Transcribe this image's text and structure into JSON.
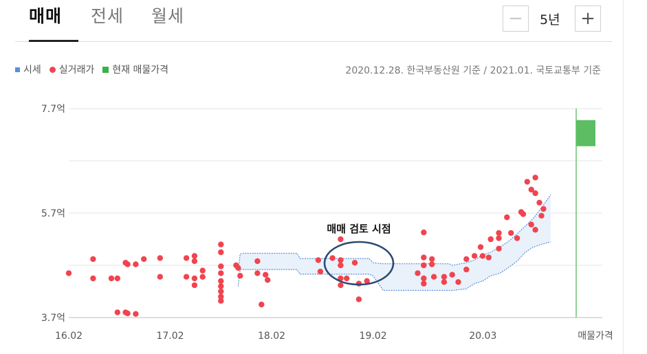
{
  "tabs": [
    {
      "label": "매매",
      "active": true
    },
    {
      "label": "전세",
      "active": false
    },
    {
      "label": "월세",
      "active": false
    }
  ],
  "period": {
    "minus_icon": "minus-icon",
    "value": "5년",
    "plus_icon": "plus-icon"
  },
  "legend": [
    {
      "label": "시세",
      "color": "#5b8fd9",
      "shape": "square"
    },
    {
      "label": "실거래가",
      "color": "#f0444e",
      "shape": "circle"
    },
    {
      "label": "현재 매물가격",
      "color": "#3cb04a",
      "shape": "square"
    }
  ],
  "basis_text": "2020.12.28. 한국부동산원 기준 / 2021.01. 국토교통부 기준",
  "annotation": {
    "text": "매매 검토 시점"
  },
  "chart_data": {
    "type": "scatter",
    "title": "",
    "xlabel": "",
    "ylabel": "",
    "y_unit": "억",
    "ylim": [
      3.7,
      7.7
    ],
    "y_ticks": [
      {
        "value": 3.7,
        "label": "3.7억"
      },
      {
        "value": 5.7,
        "label": "5.7억"
      },
      {
        "value": 7.7,
        "label": "7.7억"
      }
    ],
    "xlim": [
      2016.0,
      2021.26
    ],
    "x_ticks": [
      {
        "value": 2016.0,
        "label": "16.02"
      },
      {
        "value": 2017.0,
        "label": "17.02"
      },
      {
        "value": 2018.0,
        "label": "18.02"
      },
      {
        "value": 2019.0,
        "label": "19.02"
      },
      {
        "value": 2020.083,
        "label": "20.03"
      }
    ],
    "listing_label": "매물가격",
    "grid": true,
    "series": [
      {
        "name": "시세",
        "type": "band",
        "color": "#5b8fd9",
        "x": [
          2017.67,
          2017.69,
          2017.72,
          2018.25,
          2018.28,
          2018.96,
          2019.0,
          2019.1,
          2019.75,
          2019.78,
          2019.92,
          2020.0,
          2020.08,
          2020.16,
          2020.25,
          2020.33,
          2020.42,
          2020.5,
          2020.58,
          2020.66,
          2020.75
        ],
        "upper": [
          4.6,
          4.92,
          4.93,
          4.93,
          4.83,
          4.83,
          4.75,
          4.73,
          4.73,
          4.7,
          4.75,
          4.8,
          4.9,
          4.95,
          5.05,
          5.15,
          5.3,
          5.45,
          5.6,
          5.8,
          6.05
        ],
        "lower": [
          4.3,
          4.62,
          4.62,
          4.62,
          4.53,
          4.53,
          4.5,
          4.22,
          4.22,
          4.22,
          4.25,
          4.35,
          4.4,
          4.5,
          4.55,
          4.65,
          4.78,
          4.95,
          5.05,
          5.1,
          5.15
        ]
      },
      {
        "name": "실거래가",
        "type": "scatter",
        "color": "#f0444e",
        "points": [
          [
            2016.0,
            4.55
          ],
          [
            2016.24,
            4.82
          ],
          [
            2016.24,
            4.45
          ],
          [
            2016.42,
            4.45
          ],
          [
            2016.48,
            4.45
          ],
          [
            2016.48,
            3.8
          ],
          [
            2016.56,
            3.8
          ],
          [
            2016.58,
            3.78
          ],
          [
            2016.56,
            4.75
          ],
          [
            2016.58,
            4.72
          ],
          [
            2016.66,
            3.77
          ],
          [
            2016.66,
            4.72
          ],
          [
            2016.74,
            4.82
          ],
          [
            2016.9,
            4.84
          ],
          [
            2016.9,
            4.48
          ],
          [
            2017.16,
            4.84
          ],
          [
            2017.16,
            4.48
          ],
          [
            2017.24,
            4.88
          ],
          [
            2017.24,
            4.78
          ],
          [
            2017.24,
            4.45
          ],
          [
            2017.24,
            4.32
          ],
          [
            2017.32,
            4.6
          ],
          [
            2017.32,
            4.48
          ],
          [
            2017.5,
            5.1
          ],
          [
            2017.5,
            4.95
          ],
          [
            2017.5,
            4.68
          ],
          [
            2017.5,
            4.55
          ],
          [
            2017.5,
            4.4
          ],
          [
            2017.5,
            4.3
          ],
          [
            2017.5,
            4.2
          ],
          [
            2017.5,
            4.1
          ],
          [
            2017.5,
            4.02
          ],
          [
            2017.65,
            4.7
          ],
          [
            2017.67,
            4.65
          ],
          [
            2017.69,
            4.5
          ],
          [
            2017.86,
            4.78
          ],
          [
            2017.86,
            4.55
          ],
          [
            2017.9,
            3.95
          ],
          [
            2017.94,
            4.52
          ],
          [
            2017.96,
            4.42
          ],
          [
            2018.46,
            4.8
          ],
          [
            2018.48,
            4.58
          ],
          [
            2018.6,
            4.84
          ],
          [
            2018.68,
            5.2
          ],
          [
            2018.68,
            4.8
          ],
          [
            2018.68,
            4.7
          ],
          [
            2018.68,
            4.45
          ],
          [
            2018.68,
            4.32
          ],
          [
            2018.74,
            4.45
          ],
          [
            2018.82,
            4.75
          ],
          [
            2018.86,
            4.05
          ],
          [
            2018.86,
            4.35
          ],
          [
            2018.94,
            4.4
          ],
          [
            2019.44,
            4.55
          ],
          [
            2019.5,
            5.33
          ],
          [
            2019.5,
            4.85
          ],
          [
            2019.5,
            4.7
          ],
          [
            2019.5,
            4.45
          ],
          [
            2019.5,
            4.35
          ],
          [
            2019.58,
            4.82
          ],
          [
            2019.58,
            4.72
          ],
          [
            2019.6,
            4.48
          ],
          [
            2019.7,
            4.48
          ],
          [
            2019.7,
            4.38
          ],
          [
            2019.78,
            4.52
          ],
          [
            2019.84,
            4.38
          ],
          [
            2019.92,
            4.82
          ],
          [
            2019.92,
            4.62
          ],
          [
            2020.0,
            4.88
          ],
          [
            2020.06,
            5.05
          ],
          [
            2020.08,
            4.88
          ],
          [
            2020.14,
            4.85
          ],
          [
            2020.16,
            5.2
          ],
          [
            2020.24,
            5.32
          ],
          [
            2020.24,
            5.22
          ],
          [
            2020.24,
            5.02
          ],
          [
            2020.32,
            5.62
          ],
          [
            2020.36,
            5.32
          ],
          [
            2020.42,
            5.22
          ],
          [
            2020.52,
            6.3
          ],
          [
            2020.56,
            6.15
          ],
          [
            2020.6,
            6.38
          ],
          [
            2020.6,
            6.08
          ],
          [
            2020.64,
            5.9
          ],
          [
            2020.66,
            5.65
          ],
          [
            2020.68,
            5.78
          ],
          [
            2020.56,
            5.48
          ],
          [
            2020.6,
            5.38
          ],
          [
            2020.48,
            5.68
          ],
          [
            2020.46,
            5.72
          ]
        ]
      },
      {
        "name": "현재 매물가격",
        "type": "range_bar",
        "color": "#3cb04a",
        "min": 6.98,
        "max": 7.48
      }
    ]
  }
}
